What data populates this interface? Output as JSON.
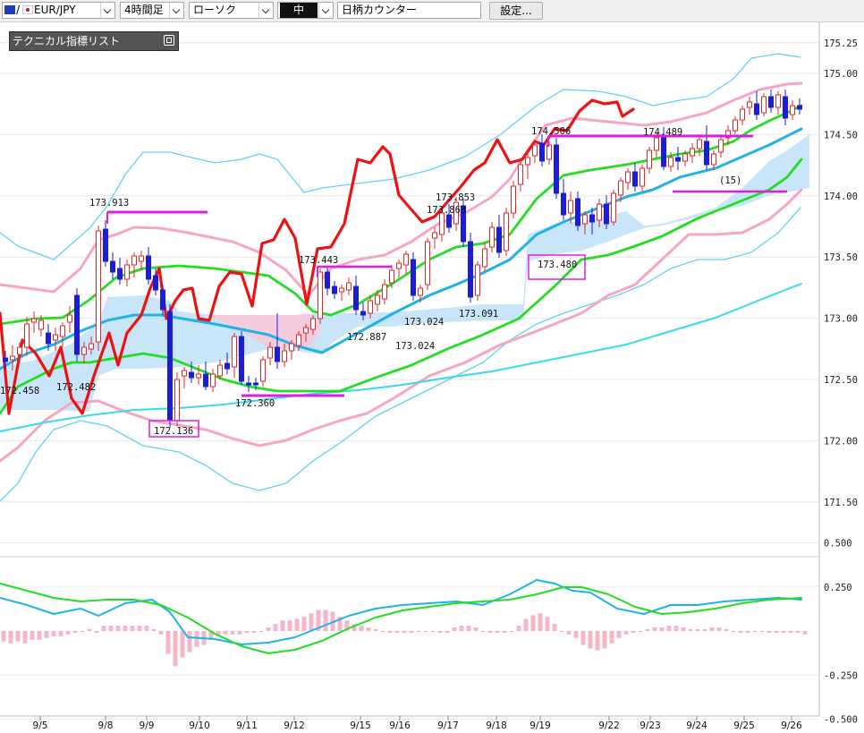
{
  "toolbar": {
    "symbol": "EUR/JPY",
    "symbol_prefix": "/",
    "timeframe": "4時間足",
    "chart_type": "ローソク",
    "line_width": "中",
    "counter": "日柄カウンター",
    "settings": "設定..."
  },
  "panel": {
    "title": "テクニカル指標リスト"
  },
  "colors": {
    "bull_candle": "#e0282a",
    "bear_candle": "#1d1dd6",
    "cloud_bull": "#bfe0f8",
    "cloud_bear": "#f9c9da",
    "price_line": "#ee1111",
    "boll_inner": "#f7a5c5",
    "boll_outer": "#5fd3f2",
    "ma_green": "#22dd22",
    "ma_blue": "#21b3e6",
    "ma_long": "#39d9ee",
    "magenta": "#e01ee0",
    "macd_hist": "#f5b7c8"
  },
  "chart_data": {
    "type": "candlestick",
    "symbol": "EUR/JPY",
    "price_axis": {
      "ticks": [
        "175.25",
        "175.00",
        "174.50",
        "174.00",
        "173.50",
        "173.00",
        "172.50",
        "172.00",
        "171.50"
      ]
    },
    "macd_axis": {
      "ticks": [
        "0.500",
        "0.250",
        "-0.250",
        "-0.500"
      ]
    },
    "x_labels": [
      "9/5",
      "9/8",
      "9/9",
      "9/10",
      "9/11",
      "9/12",
      "9/15",
      "9/16",
      "9/17",
      "9/18",
      "9/19",
      "9/22",
      "9/23",
      "9/24",
      "9/25",
      "9/26"
    ],
    "annotations": [
      "173.913",
      "173.443",
      "173.853",
      "173.863",
      "174.506",
      "174.489",
      "172.458",
      "172.482",
      "172.136",
      "172.360",
      "172.887",
      "173.024",
      "173.024",
      "173.091",
      "173.480",
      "(15)"
    ],
    "candles_note": "EUR/JPY 4-hour candles, approx 172.1 to 174.9"
  }
}
